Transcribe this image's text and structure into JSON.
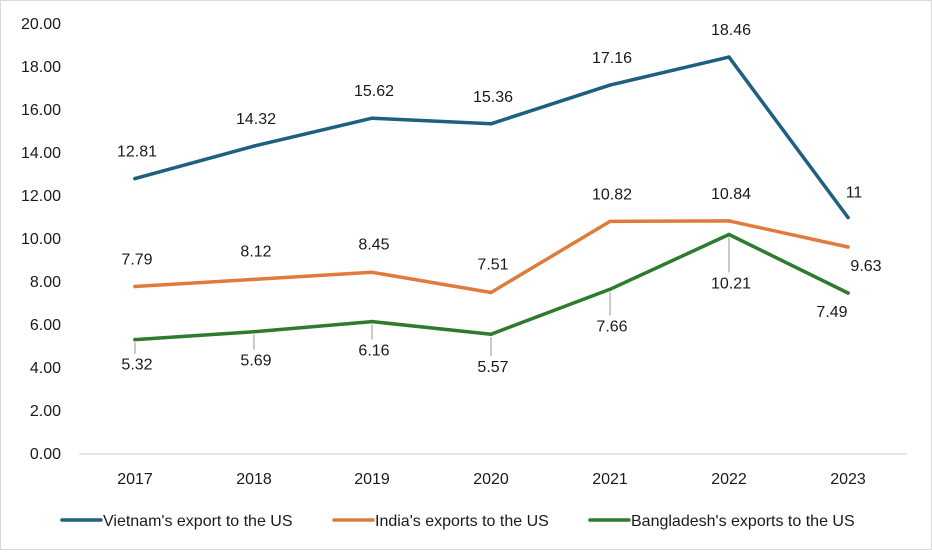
{
  "chart_data": {
    "type": "line",
    "title": "",
    "xlabel": "",
    "ylabel": "",
    "x": [
      "2017",
      "2018",
      "2019",
      "2020",
      "2021",
      "2022",
      "2023"
    ],
    "ylim": [
      0,
      20
    ],
    "yticks": [
      "0.00",
      "2.00",
      "4.00",
      "6.00",
      "8.00",
      "10.00",
      "12.00",
      "14.00",
      "16.00",
      "18.00",
      "20.00"
    ],
    "grid": false,
    "legend_position": "bottom",
    "series": [
      {
        "name": "Vietnam's export to the US",
        "color": "#1f5f7f",
        "values": [
          12.81,
          14.32,
          15.62,
          15.36,
          17.16,
          18.46,
          11
        ],
        "labels": [
          "12.81",
          "14.32",
          "15.62",
          "15.36",
          "17.16",
          "18.46",
          "11"
        ]
      },
      {
        "name": "India's exports to the US",
        "color": "#e07b3c",
        "values": [
          7.79,
          8.12,
          8.45,
          7.51,
          10.82,
          10.84,
          9.63
        ],
        "labels": [
          "7.79",
          "8.12",
          "8.45",
          "7.51",
          "10.82",
          "10.84",
          "9.63"
        ]
      },
      {
        "name": "Bangladesh's exports to the US",
        "color": "#2e7a2e",
        "values": [
          5.32,
          5.69,
          6.16,
          5.57,
          7.66,
          10.21,
          7.49
        ],
        "labels": [
          "5.32",
          "5.69",
          "6.16",
          "5.57",
          "7.66",
          "10.21",
          "7.49"
        ]
      }
    ]
  }
}
